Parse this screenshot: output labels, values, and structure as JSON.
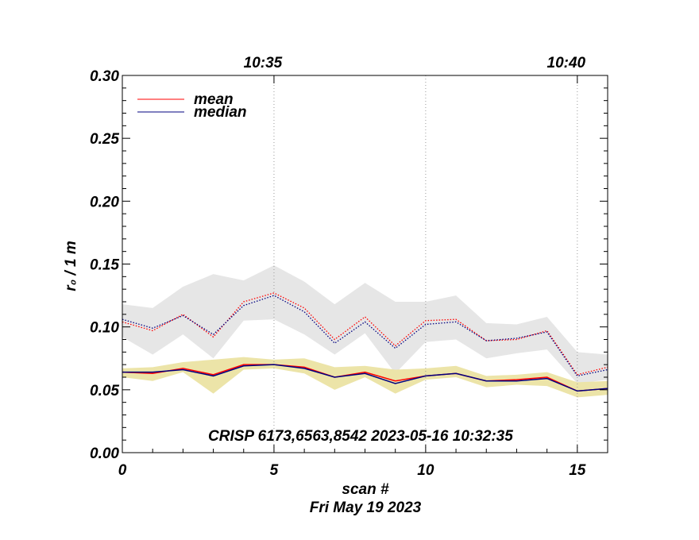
{
  "chart_data": {
    "type": "line",
    "title": "",
    "xlabel": "scan #",
    "ylabel": "r₀ / 1 m",
    "xlim": [
      0,
      16
    ],
    "ylim": [
      0.0,
      0.3
    ],
    "x_ticks": [
      0,
      5,
      10,
      15
    ],
    "x_tick_labels": [
      "0",
      "5",
      "10",
      "15"
    ],
    "y_ticks": [
      0.0,
      0.05,
      0.1,
      0.15,
      0.2,
      0.25,
      0.3
    ],
    "y_tick_labels": [
      "0.00",
      "0.05",
      "0.10",
      "0.15",
      "0.20",
      "0.25",
      "0.30"
    ],
    "top_axis": {
      "ticks": [
        {
          "x": 5,
          "label": "10:35"
        },
        {
          "x": 15,
          "label": "10:40"
        }
      ]
    },
    "annotation": "CRISP 6173,6563,8542 2023-05-16 10:32:35",
    "date_label": "Fri May 19 2023",
    "legend": [
      {
        "label": "mean",
        "color": "#ff0000"
      },
      {
        "label": "median",
        "color": "#000080"
      }
    ],
    "x": [
      0,
      1,
      2,
      3,
      4,
      5,
      6,
      7,
      8,
      9,
      10,
      11,
      12,
      13,
      14,
      15,
      16
    ],
    "series": [
      {
        "name": "mean (upper)",
        "color": "#ff0000",
        "style": "dotted",
        "values": [
          0.104,
          0.097,
          0.11,
          0.092,
          0.12,
          0.127,
          0.115,
          0.09,
          0.108,
          0.085,
          0.105,
          0.106,
          0.089,
          0.09,
          0.097,
          0.062,
          0.068
        ]
      },
      {
        "name": "median (upper)",
        "color": "#000080",
        "style": "dotted",
        "values": [
          0.106,
          0.099,
          0.109,
          0.094,
          0.117,
          0.125,
          0.112,
          0.087,
          0.104,
          0.083,
          0.102,
          0.104,
          0.089,
          0.091,
          0.096,
          0.061,
          0.066
        ]
      },
      {
        "name": "mean (lower)",
        "color": "#ff0000",
        "style": "solid",
        "values": [
          0.064,
          0.063,
          0.067,
          0.062,
          0.07,
          0.07,
          0.068,
          0.06,
          0.064,
          0.057,
          0.061,
          0.063,
          0.057,
          0.058,
          0.06,
          0.049,
          0.051
        ]
      },
      {
        "name": "median (lower)",
        "color": "#000080",
        "style": "solid",
        "values": [
          0.064,
          0.064,
          0.066,
          0.061,
          0.069,
          0.07,
          0.067,
          0.06,
          0.063,
          0.055,
          0.061,
          0.063,
          0.057,
          0.057,
          0.059,
          0.049,
          0.051
        ]
      }
    ],
    "bands": [
      {
        "name": "upper range",
        "color": "#e6e6e6",
        "upper": [
          0.118,
          0.115,
          0.132,
          0.142,
          0.137,
          0.149,
          0.136,
          0.118,
          0.135,
          0.12,
          0.12,
          0.125,
          0.103,
          0.102,
          0.108,
          0.08,
          0.078
        ],
        "lower": [
          0.092,
          0.078,
          0.094,
          0.075,
          0.105,
          0.106,
          0.094,
          0.078,
          0.095,
          0.063,
          0.088,
          0.09,
          0.075,
          0.079,
          0.082,
          0.055,
          0.058
        ]
      },
      {
        "name": "lower range",
        "color": "#ece4a8",
        "upper": [
          0.067,
          0.068,
          0.072,
          0.074,
          0.076,
          0.074,
          0.075,
          0.068,
          0.069,
          0.066,
          0.067,
          0.069,
          0.061,
          0.062,
          0.064,
          0.056,
          0.057
        ],
        "lower": [
          0.06,
          0.057,
          0.064,
          0.047,
          0.066,
          0.067,
          0.063,
          0.05,
          0.06,
          0.047,
          0.058,
          0.06,
          0.052,
          0.054,
          0.053,
          0.044,
          0.046
        ]
      }
    ],
    "vertical_gridlines": [
      5,
      10,
      15
    ]
  }
}
